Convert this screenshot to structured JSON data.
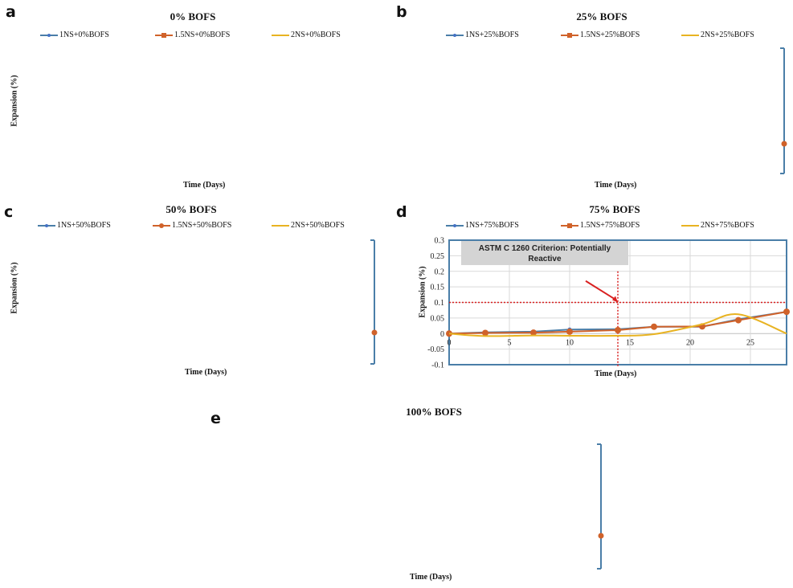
{
  "figure": {
    "panels": [
      {
        "id": "a",
        "letter": "a",
        "title": "0% BOFS",
        "legend": [
          "1NS+0%BOFS",
          "1.5NS+0%BOFS",
          "2NS+0%BOFS"
        ],
        "ylabel": "Expansion (%)",
        "xlabel": "Time (Days)"
      },
      {
        "id": "b",
        "letter": "b",
        "title": "25% BOFS",
        "legend": [
          "1NS+25%BOFS",
          "1.5NS+25%BOFS",
          "2NS+25%BOFS"
        ],
        "ylabel": "",
        "xlabel": "Time (Days)"
      },
      {
        "id": "c",
        "letter": "c",
        "title": "50% BOFS",
        "legend": [
          "1NS+50%BOFS",
          "1.5NS+50%BOFS",
          "2NS+50%BOFS"
        ],
        "ylabel": "Expansion (%)",
        "xlabel": "Time (Days)"
      },
      {
        "id": "d",
        "letter": "d",
        "title": "75% BOFS",
        "legend": [
          "1NS+75%BOFS",
          "1.5NS+75%BOFS",
          "2NS+75%BOFS"
        ],
        "ylabel": "Expansion (%)",
        "xlabel": "Time (Days)"
      },
      {
        "id": "e",
        "letter": "e",
        "title": "100% BOFS",
        "legend": [],
        "ylabel": "",
        "xlabel": "Time (Days)"
      }
    ],
    "colors": {
      "series1": "#4472c4",
      "series1_line": "#4a7ea8",
      "series2": "#d0622a",
      "series3": "#e8b322",
      "frame": "#4a7ea8",
      "grid": "#d9d9d9",
      "criterion": "#d92020",
      "annotation_bg": "#d4d4d4"
    }
  },
  "chart_data": [
    {
      "panel": "d",
      "type": "line",
      "title": "75% BOFS",
      "xlabel": "Time (Days)",
      "ylabel": "Expansion (%)",
      "xlim": [
        0,
        28
      ],
      "ylim": [
        -0.1,
        0.3
      ],
      "xticks": [
        0,
        5,
        10,
        15,
        20,
        25
      ],
      "xtick_labels": [
        "0",
        "5",
        "10",
        "15",
        "20",
        "25"
      ],
      "yticks": [
        -0.1,
        -0.05,
        0,
        0.05,
        0.1,
        0.15,
        0.2,
        0.25,
        0.3
      ],
      "ytick_labels": [
        "-0.1",
        "-0.05",
        "0",
        "0.05",
        "0.1",
        "0.15",
        "0.2",
        "0.25",
        "0.3"
      ],
      "grid": true,
      "legend_position": "top",
      "series": [
        {
          "name": "1NS+75%BOFS",
          "x": [
            0,
            3,
            7,
            10,
            14,
            17,
            21,
            24,
            28
          ],
          "y": [
            0,
            0.004,
            0.006,
            0.013,
            0.014,
            0.022,
            0.022,
            0.046,
            0.07
          ]
        },
        {
          "name": "1.5NS+75%BOFS",
          "x": [
            0,
            3,
            7,
            10,
            14,
            17,
            21,
            24,
            28
          ],
          "y": [
            0,
            0.002,
            0.003,
            0.006,
            0.011,
            0.022,
            0.023,
            0.043,
            0.07
          ]
        },
        {
          "name": "2NS+75%BOFS",
          "x": [
            0,
            3,
            7,
            10,
            14,
            17,
            21,
            24,
            28
          ],
          "y": [
            0,
            -0.008,
            -0.006,
            -0.007,
            -0.007,
            -0.002,
            0.03,
            0.062,
            0
          ]
        }
      ],
      "reference_lines": {
        "criterion_y": 0.1,
        "criterion_x": 14
      },
      "annotation": {
        "text_line1": "ASTM C 1260 Criterion: Potentially",
        "text_line2": "Reactive",
        "points_to": [
          14,
          0.1
        ]
      }
    },
    {
      "panel": "a",
      "type": "line",
      "title": "0% BOFS",
      "xlabel": "Time (Days)",
      "ylabel": "Expansion (%)",
      "series": [
        {
          "name": "1NS+0%BOFS"
        },
        {
          "name": "1.5NS+0%BOFS"
        },
        {
          "name": "2NS+0%BOFS"
        }
      ],
      "note": "plot area not rendered"
    },
    {
      "panel": "b",
      "type": "line",
      "title": "25% BOFS",
      "xlabel": "Time (Days)",
      "series": [
        {
          "name": "1NS+25%BOFS"
        },
        {
          "name": "1.5NS+25%BOFS"
        },
        {
          "name": "2NS+25%BOFS"
        }
      ],
      "note": "plot area not rendered; only right axis stub visible"
    },
    {
      "panel": "c",
      "type": "line",
      "title": "50% BOFS",
      "xlabel": "Time (Days)",
      "ylabel": "Expansion (%)",
      "series": [
        {
          "name": "1NS+50%BOFS"
        },
        {
          "name": "1.5NS+50%BOFS"
        },
        {
          "name": "2NS+50%BOFS"
        }
      ],
      "note": "plot area not rendered; only right axis stub visible"
    },
    {
      "panel": "e",
      "type": "line",
      "title": "100% BOFS",
      "xlabel": "Time (Days)",
      "note": "plot area not rendered; only right axis stub visible"
    }
  ]
}
